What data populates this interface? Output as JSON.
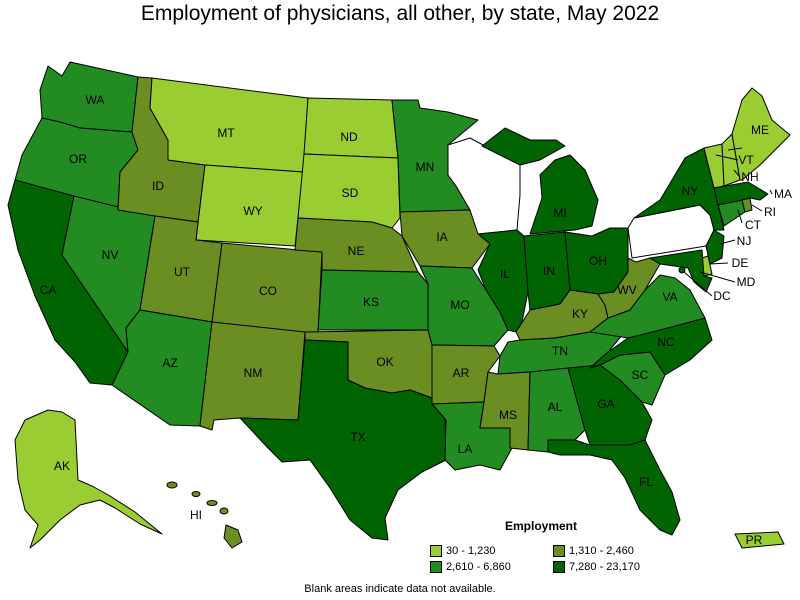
{
  "title": "Employment of physicians, all other, by state, May 2022",
  "colors": {
    "range_1": "#9acd32",
    "range_2": "#6b8e23",
    "range_3": "#228b22",
    "range_4": "#006400",
    "no_data": "#ffffff"
  },
  "legend": {
    "title": "Employment",
    "ranges": [
      {
        "label": "30 - 1,230",
        "color": "#9acd32"
      },
      {
        "label": "1,310 - 2,460",
        "color": "#6b8e23"
      },
      {
        "label": "2,610 - 6,860",
        "color": "#228b22"
      },
      {
        "label": "7,280 - 23,170",
        "color": "#006400"
      }
    ]
  },
  "footnote": "Blank areas indicate data not available.",
  "states": {
    "WA": {
      "label": "WA",
      "range": 3
    },
    "OR": {
      "label": "OR",
      "range": 3
    },
    "CA": {
      "label": "CA",
      "range": 4
    },
    "NV": {
      "label": "NV",
      "range": 3
    },
    "ID": {
      "label": "ID",
      "range": 2
    },
    "MT": {
      "label": "MT",
      "range": 1
    },
    "WY": {
      "label": "WY",
      "range": 1
    },
    "UT": {
      "label": "UT",
      "range": 2
    },
    "AZ": {
      "label": "AZ",
      "range": 3
    },
    "CO": {
      "label": "CO",
      "range": 2
    },
    "NM": {
      "label": "NM",
      "range": 2
    },
    "ND": {
      "label": "ND",
      "range": 1
    },
    "SD": {
      "label": "SD",
      "range": 1
    },
    "NE": {
      "label": "NE",
      "range": 2
    },
    "KS": {
      "label": "KS",
      "range": 3
    },
    "OK": {
      "label": "OK",
      "range": 2
    },
    "TX": {
      "label": "TX",
      "range": 4
    },
    "MN": {
      "label": "MN",
      "range": 3
    },
    "IA": {
      "label": "IA",
      "range": 2
    },
    "MO": {
      "label": "MO",
      "range": 3
    },
    "AR": {
      "label": "AR",
      "range": 2
    },
    "LA": {
      "label": "LA",
      "range": 3
    },
    "WI": {
      "label": "",
      "range": 0
    },
    "IL": {
      "label": "IL",
      "range": 4
    },
    "MI": {
      "label": "MI",
      "range": 4
    },
    "IN": {
      "label": "IN",
      "range": 4
    },
    "OH": {
      "label": "OH",
      "range": 4
    },
    "KY": {
      "label": "KY",
      "range": 2
    },
    "TN": {
      "label": "TN",
      "range": 3
    },
    "MS": {
      "label": "MS",
      "range": 2
    },
    "AL": {
      "label": "AL",
      "range": 3
    },
    "GA": {
      "label": "GA",
      "range": 4
    },
    "FL": {
      "label": "FL",
      "range": 4
    },
    "SC": {
      "label": "SC",
      "range": 3
    },
    "NC": {
      "label": "NC",
      "range": 4
    },
    "VA": {
      "label": "VA",
      "range": 3
    },
    "WV": {
      "label": "WV",
      "range": 2
    },
    "PA": {
      "label": "",
      "range": 0
    },
    "NY": {
      "label": "NY",
      "range": 4
    },
    "VT": {
      "label": "VT",
      "range": 1
    },
    "NH": {
      "label": "NH",
      "range": 1
    },
    "ME": {
      "label": "ME",
      "range": 1
    },
    "MA": {
      "label": "MA",
      "range": 4
    },
    "RI": {
      "label": "RI",
      "range": 2
    },
    "CT": {
      "label": "CT",
      "range": 3
    },
    "NJ": {
      "label": "NJ",
      "range": 4
    },
    "DE": {
      "label": "DE",
      "range": 1
    },
    "MD": {
      "label": "MD",
      "range": 4
    },
    "DC": {
      "label": "DC",
      "range": 4
    },
    "AK": {
      "label": "AK",
      "range": 1
    },
    "HI": {
      "label": "HI",
      "range": 2
    },
    "PR": {
      "label": "PR",
      "range": 1
    }
  }
}
